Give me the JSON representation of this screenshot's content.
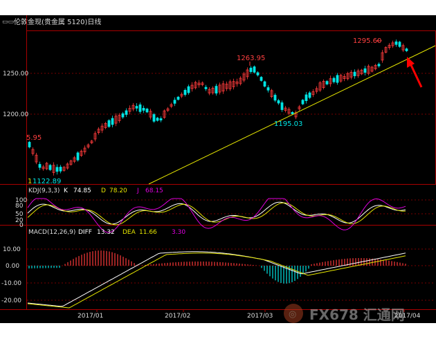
{
  "title": {
    "icon": "window-menu-icon",
    "text": "伦敦金现(贵金属 5120)日线"
  },
  "price_panel": {
    "y_ticks": [
      "1250.00",
      "1200.00"
    ],
    "annotations": {
      "high_1": "1263.95",
      "high_2": "1295.60",
      "low_1": "1195.03",
      "left_top": "5.95",
      "left_bottom": "1122.89",
      "left_bottom_prefix": "1"
    }
  },
  "kdj_panel": {
    "label": "KDJ(9,3,3)",
    "k_label": "K",
    "k_value": "74.85",
    "d_label": "D",
    "d_value": "78.20",
    "j_label": "J",
    "j_value": "68.15",
    "y_ticks": [
      "100",
      "80",
      "50",
      "20",
      "0"
    ]
  },
  "macd_panel": {
    "label": "MACD(12,26,9)",
    "diff_label": "DIFF",
    "diff_value": "13.32",
    "dea_label": "DEA",
    "dea_value": "11.66",
    "macd_value": "3.30",
    "y_ticks": [
      "10.00",
      "0.00",
      "-10.00",
      "-20.00"
    ]
  },
  "x_axis": {
    "labels": [
      "2017/01",
      "2017/02",
      "2017/03",
      "2017/04"
    ]
  },
  "watermark": {
    "logo": "FX678",
    "text": "FX678 汇通网"
  },
  "colors": {
    "background": "#000000",
    "frame": "#aa0000",
    "candle_up": "#ff3b3b",
    "candle_down": "#00e5e5",
    "trendline": "#e5e500",
    "k_line": "#ffffff",
    "d_line": "#e5e500",
    "j_line": "#e000e0",
    "axis_text": "#dcdcdc",
    "arrow": "#ff0000"
  }
}
